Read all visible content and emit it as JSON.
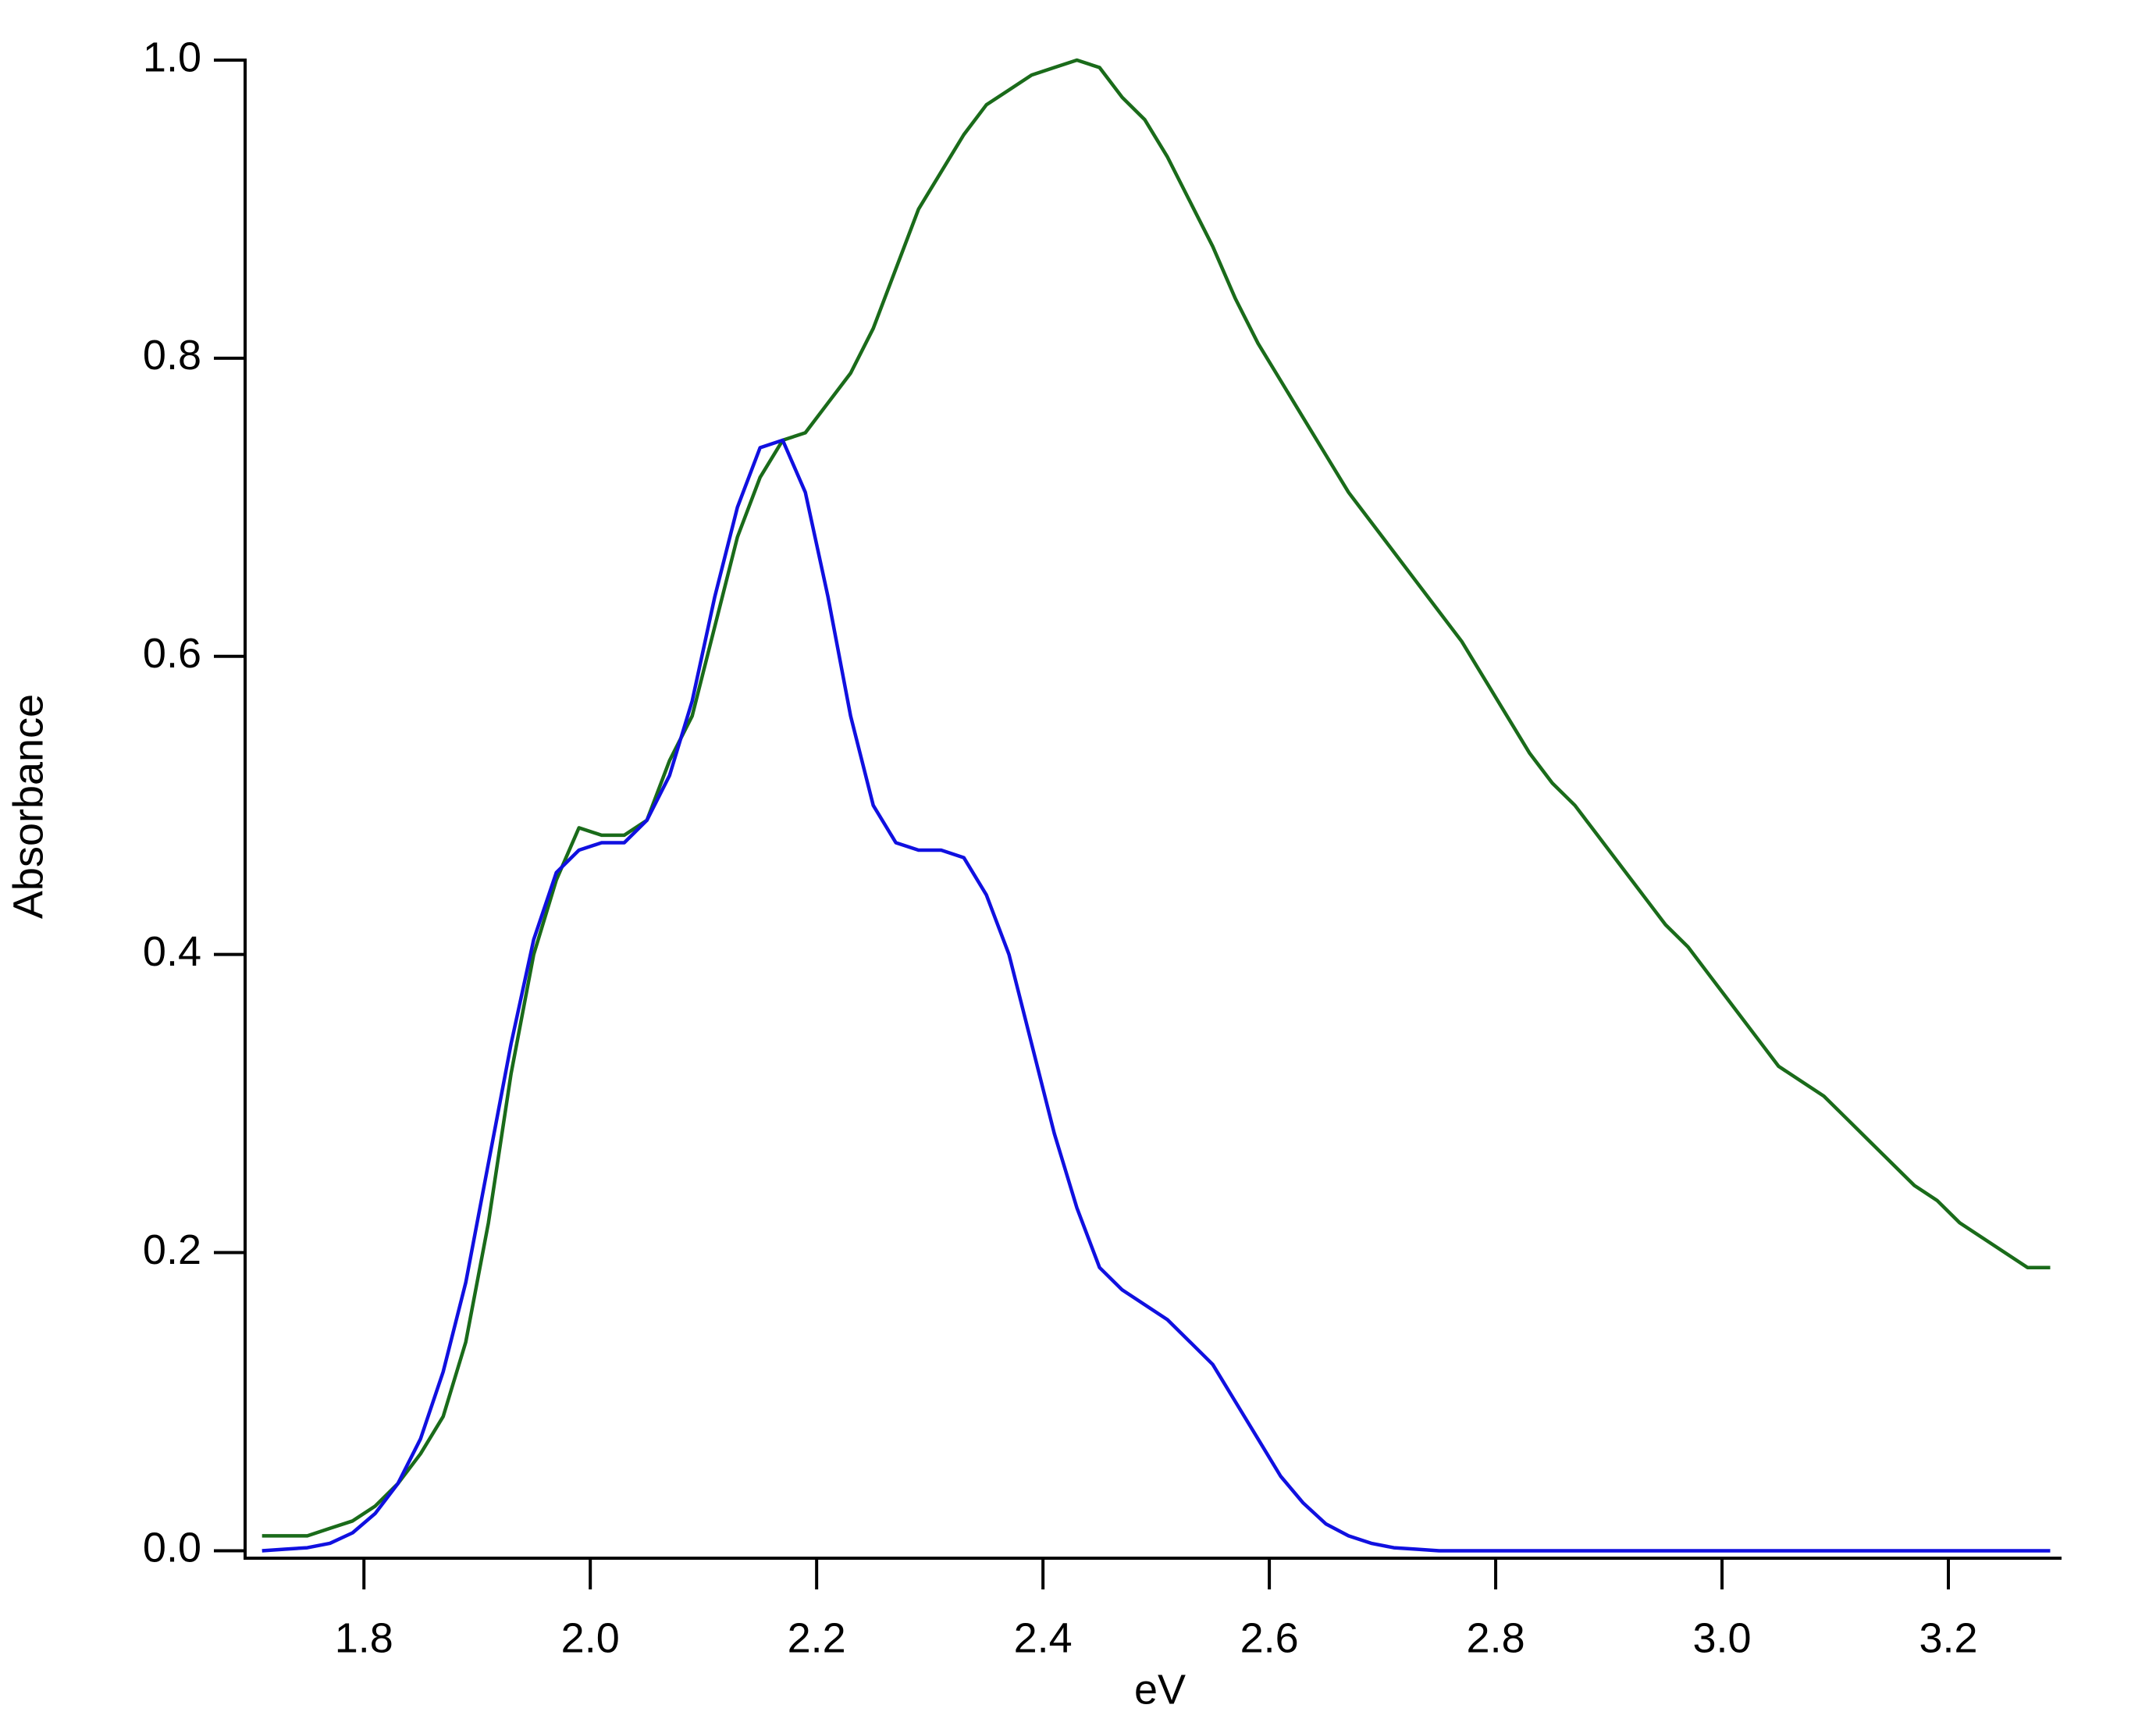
{
  "chart_data": {
    "type": "line",
    "x_label": "eV",
    "y_label": "Absorbance",
    "x": [
      1.71,
      1.73,
      1.75,
      1.77,
      1.79,
      1.81,
      1.83,
      1.85,
      1.87,
      1.89,
      1.91,
      1.93,
      1.95,
      1.97,
      1.99,
      2.01,
      2.03,
      2.05,
      2.07,
      2.09,
      2.11,
      2.13,
      2.15,
      2.17,
      2.19,
      2.21,
      2.23,
      2.25,
      2.27,
      2.29,
      2.31,
      2.33,
      2.35,
      2.37,
      2.39,
      2.41,
      2.43,
      2.45,
      2.47,
      2.49,
      2.51,
      2.53,
      2.55,
      2.57,
      2.59,
      2.61,
      2.63,
      2.65,
      2.67,
      2.69,
      2.71,
      2.73,
      2.75,
      2.77,
      2.79,
      2.81,
      2.83,
      2.85,
      2.87,
      2.89,
      2.91,
      2.93,
      2.95,
      2.97,
      2.99,
      3.01,
      3.03,
      3.05,
      3.07,
      3.09,
      3.11,
      3.13,
      3.15,
      3.17,
      3.19,
      3.21,
      3.23,
      3.25,
      3.27,
      3.29
    ],
    "series": [
      {
        "color": "#1a6b1a",
        "values": [
          0.01,
          0.01,
          0.01,
          0.015,
          0.02,
          0.03,
          0.045,
          0.065,
          0.09,
          0.14,
          0.22,
          0.32,
          0.4,
          0.45,
          0.485,
          0.48,
          0.48,
          0.49,
          0.53,
          0.56,
          0.62,
          0.68,
          0.72,
          0.745,
          0.75,
          0.77,
          0.79,
          0.82,
          0.86,
          0.9,
          0.925,
          0.95,
          0.97,
          0.98,
          0.99,
          0.995,
          1.0,
          0.995,
          0.975,
          0.96,
          0.935,
          0.905,
          0.875,
          0.84,
          0.81,
          0.785,
          0.76,
          0.735,
          0.71,
          0.69,
          0.67,
          0.65,
          0.63,
          0.61,
          0.585,
          0.56,
          0.535,
          0.515,
          0.5,
          0.48,
          0.46,
          0.44,
          0.42,
          0.405,
          0.385,
          0.365,
          0.345,
          0.325,
          0.315,
          0.305,
          0.29,
          0.275,
          0.26,
          0.245,
          0.235,
          0.22,
          0.21,
          0.2,
          0.19,
          0.19
        ]
      },
      {
        "color": "#1010e0",
        "values": [
          0,
          0.001,
          0.002,
          0.005,
          0.012,
          0.025,
          0.045,
          0.075,
          0.12,
          0.18,
          0.26,
          0.34,
          0.41,
          0.455,
          0.47,
          0.475,
          0.475,
          0.49,
          0.52,
          0.57,
          0.64,
          0.7,
          0.74,
          0.745,
          0.71,
          0.64,
          0.56,
          0.5,
          0.475,
          0.47,
          0.47,
          0.465,
          0.44,
          0.4,
          0.34,
          0.28,
          0.23,
          0.19,
          0.175,
          0.165,
          0.155,
          0.14,
          0.125,
          0.1,
          0.075,
          0.05,
          0.032,
          0.018,
          0.01,
          0.005,
          0.002,
          0.001,
          0,
          0,
          0,
          0,
          0,
          0,
          0,
          0,
          0,
          0,
          0,
          0,
          0,
          0,
          0,
          0,
          0,
          0,
          0,
          0,
          0,
          0,
          0,
          0,
          0,
          0,
          0,
          0
        ]
      }
    ],
    "xlim": [
      1.695,
      3.3
    ],
    "ylim": [
      -0.005,
      1.0
    ],
    "xticks": [
      1.8,
      {
        "value": 2,
        "label": "2.0"
      },
      2.2,
      2.4,
      2.6,
      2.8,
      {
        "value": 3,
        "label": "3.0"
      },
      3.2
    ],
    "yticks": [
      {
        "value": 0,
        "label": "0.0"
      },
      0.2,
      0.4,
      0.6,
      0.8,
      {
        "value": 1,
        "label": "1.0"
      }
    ]
  }
}
